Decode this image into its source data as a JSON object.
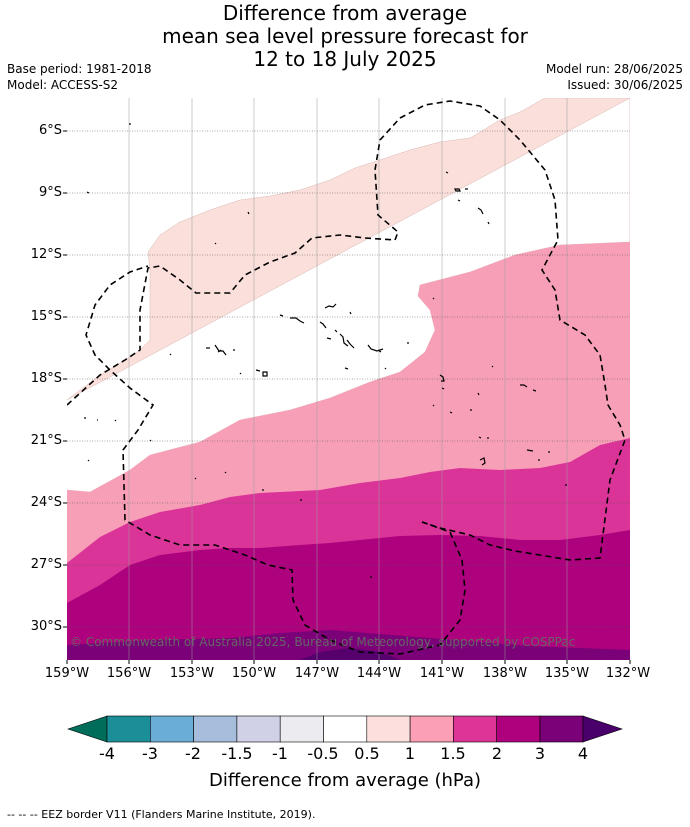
{
  "header": {
    "title_line1": "Difference from average",
    "title_line2": "mean sea level pressure forecast for",
    "title_line3": "12 to 18 July 2025",
    "base_period": "Base period: 1981-2018",
    "model": "Model: ACCESS-S2",
    "model_run": "Model run: 28/06/2025",
    "issued": "Issued: 30/06/2025"
  },
  "map": {
    "latitude_labels": [
      "6°S",
      "9°S",
      "12°S",
      "15°S",
      "18°S",
      "21°S",
      "24°S",
      "27°S",
      "30°S"
    ],
    "longitude_labels": [
      "159°W",
      "156°W",
      "153°W",
      "150°W",
      "147°W",
      "144°W",
      "141°W",
      "138°W",
      "135°W",
      "132°W"
    ],
    "copyright": "© Commonwealth of Australia 2025, Bureau of Meteorology, supported by COSPPac",
    "band_colors": [
      "#fbdfdb",
      "#f89fb8",
      "#db3499",
      "#ae017e",
      "#7a0177",
      "#49006a"
    ]
  },
  "colorbar": {
    "tick_labels": [
      "-4",
      "-3",
      "-2",
      "-1.5",
      "-1",
      "-0.5",
      "0.5",
      "1",
      "1.5",
      "2",
      "3",
      "4"
    ],
    "colors": [
      "#1b8f98",
      "#6aaed6",
      "#a6bddb",
      "#d0d1e6",
      "#ececf0",
      "#ffffff",
      "#fde0dd",
      "#fa9fb5",
      "#dd3497",
      "#ae017e",
      "#7a0177"
    ],
    "under_color": "#006d5b",
    "over_color": "#49006a",
    "title": "Difference from average (hPa)"
  },
  "footer": {
    "legend_text": "-- -- -- EEZ border V11 (Flanders Marine Institute, 2019)."
  }
}
